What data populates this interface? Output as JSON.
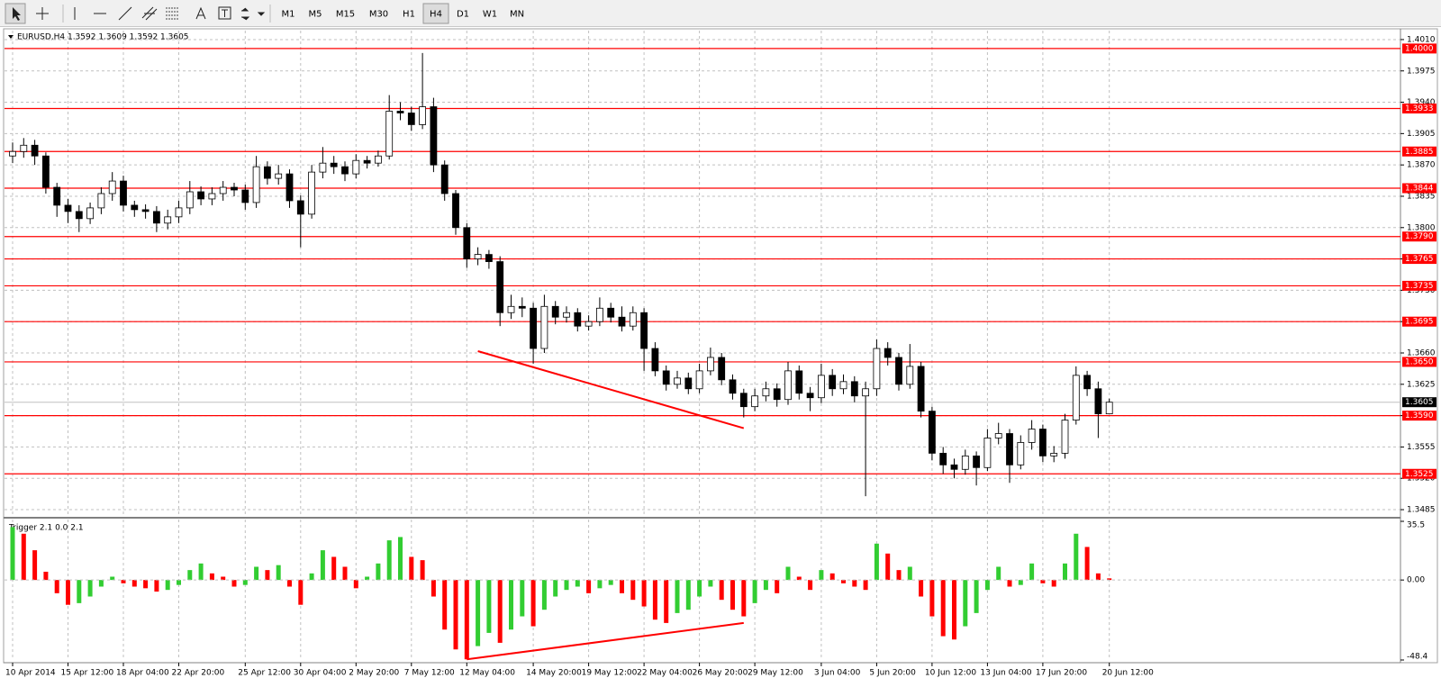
{
  "toolbar": {
    "timeframes": [
      "M1",
      "M5",
      "M15",
      "M30",
      "H1",
      "H4",
      "D1",
      "W1",
      "MN"
    ],
    "active": "H4"
  },
  "chart_data": {
    "type": "candlestick",
    "symbol_info": "EURUSD,H4  1.3592 1.3609 1.3592 1.3605",
    "categories": [
      "10 Apr 2014",
      null,
      null,
      null,
      null,
      "15 Apr 12:00",
      null,
      null,
      null,
      null,
      "18 Apr 04:00",
      null,
      null,
      null,
      null,
      "22 Apr 20:00",
      null,
      null,
      null,
      null,
      null,
      "25 Apr 12:00",
      null,
      null,
      null,
      null,
      "30 Apr 04:00",
      null,
      null,
      null,
      null,
      "2 May 20:00",
      null,
      null,
      null,
      null,
      "7 May 12:00",
      null,
      null,
      null,
      null,
      "12 May 04:00",
      null,
      null,
      null,
      null,
      null,
      "14 May 20:00",
      null,
      null,
      null,
      null,
      "19 May 12:00",
      null,
      null,
      null,
      null,
      "22 May 04:00",
      null,
      null,
      null,
      null,
      "26 May 20:00",
      null,
      null,
      null,
      null,
      "29 May 12:00",
      null,
      null,
      null,
      null,
      null,
      "3 Jun 04:00",
      null,
      null,
      null,
      null,
      "5 Jun 20:00",
      null,
      null,
      null,
      null,
      "10 Jun 12:00",
      null,
      null,
      null,
      null,
      "13 Jun 04:00",
      null,
      null,
      null,
      null,
      "17 Jun 20:00",
      null,
      null,
      null,
      null,
      null,
      "20 Jun 12:00"
    ],
    "open": [
      1.388,
      1.3885,
      1.3892,
      1.388,
      1.3845,
      1.3825,
      1.3818,
      1.381,
      1.3822,
      1.3838,
      1.3852,
      1.3825,
      1.382,
      1.3818,
      1.3805,
      1.3812,
      1.3822,
      1.384,
      1.3832,
      1.3838,
      1.3845,
      1.3842,
      1.3828,
      1.3868,
      1.3855,
      1.386,
      1.383,
      1.3815,
      1.3862,
      1.3872,
      1.3868,
      1.386,
      1.3875,
      1.3872,
      1.388,
      1.393,
      1.3928,
      1.3915,
      1.3935,
      1.387,
      1.3838,
      1.38,
      1.3765,
      1.377,
      1.3762,
      1.3705,
      1.3712,
      1.371,
      1.3665,
      1.3712,
      1.37,
      1.3705,
      1.369,
      1.3695,
      1.371,
      1.37,
      1.369,
      1.3705,
      1.3665,
      1.364,
      1.3625,
      1.3632,
      1.362,
      1.364,
      1.3655,
      1.363,
      1.3615,
      1.36,
      1.3612,
      1.362,
      1.3608,
      1.364,
      1.3615,
      1.361,
      1.3635,
      1.362,
      1.3628,
      1.3612,
      1.362,
      1.3665,
      1.3655,
      1.3625,
      1.3645,
      1.3595,
      1.3548,
      1.3535,
      1.353,
      1.3545,
      1.3532,
      1.3565,
      1.357,
      1.3535,
      1.356,
      1.3575,
      1.3545,
      1.3548,
      1.3585,
      1.3635,
      1.362,
      1.3592
    ],
    "high": [
      1.3895,
      1.39,
      1.3898,
      1.3884,
      1.385,
      1.3832,
      1.3825,
      1.3828,
      1.3845,
      1.3862,
      1.3858,
      1.383,
      1.3826,
      1.3824,
      1.382,
      1.383,
      1.3852,
      1.3846,
      1.3845,
      1.3852,
      1.385,
      1.3848,
      1.388,
      1.3874,
      1.387,
      1.3865,
      1.3836,
      1.387,
      1.389,
      1.388,
      1.3874,
      1.3882,
      1.388,
      1.3886,
      1.3948,
      1.394,
      1.3935,
      1.3995,
      1.3945,
      1.3875,
      1.3842,
      1.3805,
      1.3778,
      1.3775,
      1.3768,
      1.3725,
      1.3722,
      1.3716,
      1.3725,
      1.3718,
      1.3712,
      1.371,
      1.3702,
      1.3722,
      1.3716,
      1.3712,
      1.3712,
      1.371,
      1.3672,
      1.3646,
      1.364,
      1.3638,
      1.3648,
      1.3666,
      1.366,
      1.3636,
      1.362,
      1.362,
      1.3628,
      1.3626,
      1.365,
      1.3646,
      1.3622,
      1.3648,
      1.3642,
      1.3636,
      1.3634,
      1.3628,
      1.3675,
      1.3672,
      1.366,
      1.367,
      1.365,
      1.36,
      1.3555,
      1.3542,
      1.3552,
      1.355,
      1.3575,
      1.3582,
      1.3575,
      1.3568,
      1.3585,
      1.358,
      1.3556,
      1.3592,
      1.3645,
      1.364,
      1.3628,
      1.3609
    ],
    "low": [
      1.3872,
      1.3878,
      1.387,
      1.3838,
      1.3812,
      1.3805,
      1.3795,
      1.3804,
      1.3815,
      1.383,
      1.3818,
      1.3812,
      1.381,
      1.3795,
      1.3798,
      1.3805,
      1.3815,
      1.3825,
      1.3825,
      1.383,
      1.3835,
      1.382,
      1.3822,
      1.3848,
      1.3848,
      1.3822,
      1.3778,
      1.381,
      1.3855,
      1.386,
      1.3852,
      1.3855,
      1.3866,
      1.3868,
      1.3876,
      1.392,
      1.3908,
      1.391,
      1.3862,
      1.383,
      1.3792,
      1.3755,
      1.3758,
      1.3754,
      1.369,
      1.3698,
      1.37,
      1.3648,
      1.366,
      1.3692,
      1.3694,
      1.3684,
      1.3685,
      1.369,
      1.3694,
      1.3684,
      1.3685,
      1.364,
      1.3634,
      1.3618,
      1.362,
      1.3614,
      1.3615,
      1.3635,
      1.3624,
      1.3608,
      1.3588,
      1.3595,
      1.3606,
      1.36,
      1.3602,
      1.3608,
      1.3595,
      1.3604,
      1.3612,
      1.3614,
      1.3605,
      1.35,
      1.3612,
      1.3646,
      1.3618,
      1.362,
      1.3588,
      1.354,
      1.3525,
      1.352,
      1.3524,
      1.3512,
      1.3528,
      1.3558,
      1.3515,
      1.353,
      1.3552,
      1.3538,
      1.3538,
      1.3542,
      1.358,
      1.3612,
      1.3565,
      1.3592
    ],
    "close": [
      1.3885,
      1.3892,
      1.388,
      1.3845,
      1.3825,
      1.3818,
      1.381,
      1.3822,
      1.3838,
      1.3852,
      1.3825,
      1.382,
      1.3818,
      1.3805,
      1.3812,
      1.3822,
      1.384,
      1.3832,
      1.3838,
      1.3845,
      1.3842,
      1.3828,
      1.3868,
      1.3855,
      1.386,
      1.383,
      1.3815,
      1.3862,
      1.3872,
      1.3868,
      1.386,
      1.3875,
      1.3872,
      1.388,
      1.393,
      1.3928,
      1.3915,
      1.3935,
      1.387,
      1.3838,
      1.38,
      1.3765,
      1.377,
      1.3762,
      1.3705,
      1.3712,
      1.371,
      1.3665,
      1.3712,
      1.37,
      1.3705,
      1.369,
      1.3695,
      1.371,
      1.37,
      1.369,
      1.3705,
      1.3665,
      1.364,
      1.3625,
      1.3632,
      1.362,
      1.364,
      1.3655,
      1.363,
      1.3615,
      1.36,
      1.3612,
      1.362,
      1.3608,
      1.364,
      1.3615,
      1.361,
      1.3635,
      1.362,
      1.3628,
      1.3612,
      1.362,
      1.3665,
      1.3655,
      1.3625,
      1.3645,
      1.3595,
      1.3548,
      1.3535,
      1.353,
      1.3545,
      1.3532,
      1.3565,
      1.357,
      1.3535,
      1.356,
      1.3575,
      1.3545,
      1.3548,
      1.3585,
      1.3635,
      1.362,
      1.3592,
      1.3605
    ],
    "up_color": "#ffffff",
    "down_color": "#000000",
    "ylim": [
      1.348,
      1.402
    ],
    "yticks": [
      {
        "value": 1.401,
        "label": "1.4010"
      },
      1.3975,
      {
        "value": 1.394,
        "label": "1.3940"
      },
      1.3905,
      {
        "value": 1.387,
        "label": "1.3870"
      },
      1.3835,
      {
        "value": 1.38,
        "label": "1.3800"
      },
      1.3765,
      {
        "value": 1.373,
        "label": "1.3730"
      },
      1.3695,
      {
        "value": 1.366,
        "label": "1.3660"
      },
      1.3625,
      {
        "value": 1.359,
        "label": "1.3590"
      },
      1.3555,
      {
        "value": 1.352,
        "label": "1.3520"
      },
      1.3485
    ],
    "grid": true,
    "levels": [
      {
        "value": 1.4,
        "label": "1.4000"
      },
      1.3933,
      1.3885,
      1.3844,
      {
        "value": 1.379,
        "label": "1.3790"
      },
      1.3765,
      1.3735,
      1.3695,
      {
        "value": 1.365,
        "label": "1.3650"
      },
      {
        "value": 1.359,
        "label": "1.3590"
      },
      1.3525
    ],
    "level_color": "#ff0000",
    "current_price": 1.3605,
    "trendlines": [
      {
        "x": [
          42,
          66
        ],
        "values": [
          1.3662,
          1.3576
        ],
        "color": "#ff0000"
      }
    ],
    "indicator": {
      "type": "histogram",
      "name": "Trigger 2.1 0.0 2.1",
      "values": [
        32,
        28,
        18,
        5,
        -8,
        -15,
        -14,
        -10,
        -4,
        2,
        -2,
        -4,
        -5,
        -7,
        -6,
        -3,
        6,
        10,
        4,
        2,
        -4,
        -3,
        8,
        6,
        9,
        -4,
        -15,
        4,
        18,
        14,
        8,
        -5,
        2,
        10,
        24,
        26,
        14,
        12,
        -10,
        -30,
        -42,
        -48,
        -40,
        -32,
        -38,
        -30,
        -22,
        -28,
        -18,
        -10,
        -6,
        -4,
        -8,
        -5,
        -3,
        -8,
        -12,
        -16,
        -24,
        -26,
        -20,
        -18,
        -10,
        -4,
        -12,
        -18,
        -22,
        -14,
        -6,
        -8,
        8,
        2,
        -6,
        6,
        4,
        -2,
        -4,
        -6,
        22,
        16,
        6,
        8,
        -10,
        -22,
        -34,
        -36,
        -28,
        -20,
        -6,
        8,
        -4,
        -3,
        10,
        -2,
        -4,
        10,
        28,
        20,
        4,
        1
      ],
      "up_color": "#32cd32",
      "down_color": "#ff0000",
      "ylim": [
        -48.4,
        35.5
      ],
      "yticks": [
        35.5,
        {
          "value": 0,
          "label": "0.00"
        },
        -48.4
      ],
      "trendlines": [
        {
          "x": [
            41,
            66
          ],
          "values": [
            -48,
            -26
          ],
          "color": "#ff0000"
        }
      ]
    }
  }
}
